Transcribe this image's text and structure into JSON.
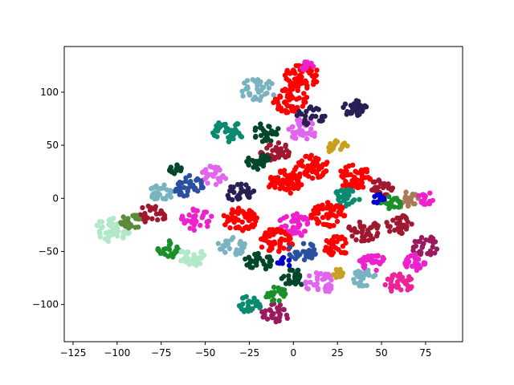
{
  "chart_data": {
    "type": "scatter",
    "title": "",
    "xlabel": "",
    "ylabel": "",
    "xlim": [
      -130,
      96
    ],
    "ylim": [
      -135,
      143
    ],
    "x_ticks": [
      -125,
      -100,
      -75,
      -50,
      -25,
      0,
      25,
      50,
      75
    ],
    "y_ticks": [
      -100,
      -50,
      0,
      50,
      100
    ],
    "x_tick_labels": [
      "−125",
      "−100",
      "−75",
      "−50",
      "−25",
      "0",
      "25",
      "50",
      "75"
    ],
    "y_tick_labels": [
      "−100",
      "−50",
      "0",
      "50",
      "100"
    ],
    "grid": false,
    "legend": "none",
    "palette": [
      "#ff0000",
      "#ee22cc",
      "#a01830",
      "#2a1f55",
      "#7ab3c0",
      "#0a8a70",
      "#e066ee",
      "#2a50a0",
      "#1a8f2a",
      "#00472a",
      "#a87a55",
      "#b0e8c8",
      "#c8a020",
      "#ee2299",
      "#0000cc",
      "#5a8a3a",
      "#9a1a60"
    ],
    "clusters": [
      {
        "x": 5,
        "y": 115,
        "r": 10,
        "c": 0,
        "n": 60
      },
      {
        "x": 8,
        "y": 125,
        "r": 4,
        "c": 1,
        "n": 14
      },
      {
        "x": -20,
        "y": 102,
        "r": 10,
        "c": 4,
        "n": 35
      },
      {
        "x": -2,
        "y": 92,
        "r": 10,
        "c": 0,
        "n": 55
      },
      {
        "x": 35,
        "y": 85,
        "r": 7,
        "c": 3,
        "n": 30
      },
      {
        "x": -37,
        "y": 63,
        "r": 9,
        "c": 5,
        "n": 35
      },
      {
        "x": -15,
        "y": 62,
        "r": 8,
        "c": 9,
        "n": 28
      },
      {
        "x": 5,
        "y": 65,
        "r": 9,
        "c": 6,
        "n": 35
      },
      {
        "x": 10,
        "y": 78,
        "r": 8,
        "c": 3,
        "n": 25
      },
      {
        "x": -10,
        "y": 45,
        "r": 9,
        "c": 2,
        "n": 35
      },
      {
        "x": 25,
        "y": 48,
        "r": 6,
        "c": 12,
        "n": 20
      },
      {
        "x": -20,
        "y": 35,
        "r": 7,
        "c": 9,
        "n": 30
      },
      {
        "x": -45,
        "y": 22,
        "r": 8,
        "c": 6,
        "n": 28
      },
      {
        "x": -60,
        "y": 12,
        "r": 9,
        "c": 7,
        "n": 35
      },
      {
        "x": -67,
        "y": 27,
        "r": 4,
        "c": 9,
        "n": 15
      },
      {
        "x": -75,
        "y": 5,
        "r": 7,
        "c": 4,
        "n": 28
      },
      {
        "x": -30,
        "y": 5,
        "r": 8,
        "c": 3,
        "n": 30
      },
      {
        "x": -5,
        "y": 15,
        "r": 10,
        "c": 0,
        "n": 60
      },
      {
        "x": 10,
        "y": 30,
        "r": 10,
        "c": 0,
        "n": 55
      },
      {
        "x": 35,
        "y": 20,
        "r": 10,
        "c": 0,
        "n": 55
      },
      {
        "x": 50,
        "y": 10,
        "r": 7,
        "c": 2,
        "n": 30
      },
      {
        "x": 30,
        "y": 0,
        "r": 8,
        "c": 5,
        "n": 30
      },
      {
        "x": 65,
        "y": -2,
        "r": 7,
        "c": 10,
        "n": 25
      },
      {
        "x": 75,
        "y": 0,
        "r": 5,
        "c": 1,
        "n": 18
      },
      {
        "x": 55,
        "y": -5,
        "r": 6,
        "c": 8,
        "n": 25
      },
      {
        "x": 48,
        "y": 0,
        "r": 4,
        "c": 14,
        "n": 12
      },
      {
        "x": -55,
        "y": -20,
        "r": 9,
        "c": 1,
        "n": 35
      },
      {
        "x": -80,
        "y": -15,
        "r": 8,
        "c": 2,
        "n": 30
      },
      {
        "x": -30,
        "y": -20,
        "r": 10,
        "c": 0,
        "n": 55
      },
      {
        "x": 0,
        "y": -25,
        "r": 10,
        "c": 1,
        "n": 45
      },
      {
        "x": 20,
        "y": -15,
        "r": 10,
        "c": 0,
        "n": 55
      },
      {
        "x": 40,
        "y": -30,
        "r": 9,
        "c": 2,
        "n": 35
      },
      {
        "x": 60,
        "y": -25,
        "r": 8,
        "c": 2,
        "n": 30
      },
      {
        "x": -103,
        "y": -30,
        "r": 10,
        "c": 11,
        "n": 45
      },
      {
        "x": -92,
        "y": -22,
        "r": 6,
        "c": 15,
        "n": 22
      },
      {
        "x": -70,
        "y": -48,
        "r": 7,
        "c": 8,
        "n": 28
      },
      {
        "x": -58,
        "y": -55,
        "r": 8,
        "c": 11,
        "n": 30
      },
      {
        "x": -35,
        "y": -45,
        "r": 8,
        "c": 4,
        "n": 30
      },
      {
        "x": -10,
        "y": -40,
        "r": 10,
        "c": 0,
        "n": 55
      },
      {
        "x": 5,
        "y": -50,
        "r": 8,
        "c": 7,
        "n": 30
      },
      {
        "x": 25,
        "y": -45,
        "r": 8,
        "c": 0,
        "n": 35
      },
      {
        "x": 45,
        "y": -60,
        "r": 8,
        "c": 1,
        "n": 30
      },
      {
        "x": 75,
        "y": -45,
        "r": 8,
        "c": 16,
        "n": 30
      },
      {
        "x": 70,
        "y": -60,
        "r": 7,
        "c": 1,
        "n": 28
      },
      {
        "x": -20,
        "y": -60,
        "r": 8,
        "c": 9,
        "n": 30
      },
      {
        "x": 0,
        "y": -75,
        "r": 7,
        "c": 9,
        "n": 28
      },
      {
        "x": 15,
        "y": -80,
        "r": 9,
        "c": 6,
        "n": 35
      },
      {
        "x": 40,
        "y": -75,
        "r": 7,
        "c": 4,
        "n": 28
      },
      {
        "x": 60,
        "y": -80,
        "r": 8,
        "c": 13,
        "n": 30
      },
      {
        "x": -25,
        "y": -100,
        "r": 7,
        "c": 5,
        "n": 25
      },
      {
        "x": -10,
        "y": -108,
        "r": 8,
        "c": 16,
        "n": 28
      },
      {
        "x": -10,
        "y": -90,
        "r": 6,
        "c": 8,
        "n": 22
      },
      {
        "x": 25,
        "y": -70,
        "r": 4,
        "c": 12,
        "n": 12
      },
      {
        "x": -5,
        "y": -60,
        "r": 4,
        "c": 14,
        "n": 10
      }
    ]
  }
}
